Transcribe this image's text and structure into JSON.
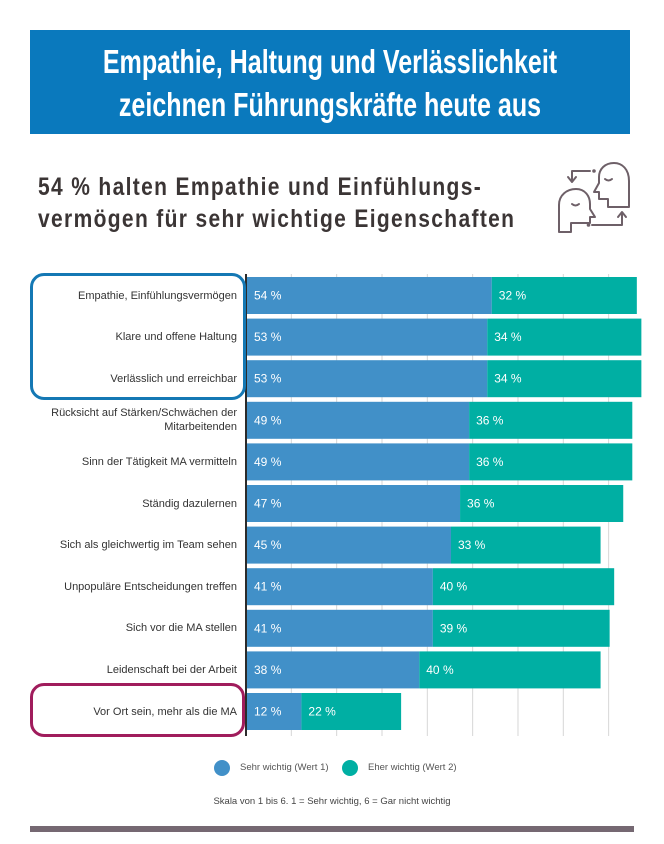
{
  "header": {
    "title_line1": "Empathie, Haltung und Verlässlichkeit",
    "title_line2": "zeichnen Führungskräfte heute aus",
    "bg_color": "#0a79bd"
  },
  "subtitle": {
    "line1": "54 % halten Empathie und Einfühlungs-",
    "line2": "vermögen für sehr wichtige Eigenschaften",
    "icon": "two-heads-exchange-icon"
  },
  "chart_data": {
    "type": "bar",
    "orientation": "horizontal",
    "stacked": true,
    "title": "",
    "xlabel": "",
    "ylabel": "",
    "categories": [
      "Empathie, Einfühlungsvermögen",
      "Klare und offene Haltung",
      "Verlässlich und erreichbar",
      "Rücksicht auf Stärken/Schwächen der Mitarbeitenden",
      "Sinn der Tätigkeit MA vermitteln",
      "Ständig dazulernen",
      "Sich als gleichwertig im Team sehen",
      "Unpopuläre Entscheidungen treffen",
      "Sich vor die MA stellen",
      "Leidenschaft bei der Arbeit",
      "Vor Ort sein, mehr als die MA"
    ],
    "series": [
      {
        "name": "Sehr wichtig (Wert 1)",
        "color": "#4190c8",
        "values": [
          54,
          53,
          53,
          49,
          49,
          47,
          45,
          41,
          41,
          38,
          12
        ]
      },
      {
        "name": "Eher wichtig (Wert 2)",
        "color": "#00afa3",
        "values": [
          32,
          34,
          34,
          36,
          36,
          36,
          33,
          40,
          39,
          40,
          22
        ]
      }
    ],
    "value_suffix": " %",
    "xlim": [
      0,
      90
    ],
    "grid": true,
    "grid_step": 10,
    "legend_position": "bottom",
    "highlighted_groups": [
      {
        "categories": [
          "Empathie, Einfühlungsvermögen",
          "Klare und offene Haltung",
          "Verlässlich und erreichbar"
        ],
        "color": "#1478b4"
      },
      {
        "categories": [
          "Vor Ort sein, mehr als die MA"
        ],
        "color": "#a01c5c"
      }
    ]
  },
  "footnote": "Skala von 1 bis 6. 1 = Sehr wichtig, 6 = Gar nicht wichtig",
  "footer_bar_color": "#756872"
}
